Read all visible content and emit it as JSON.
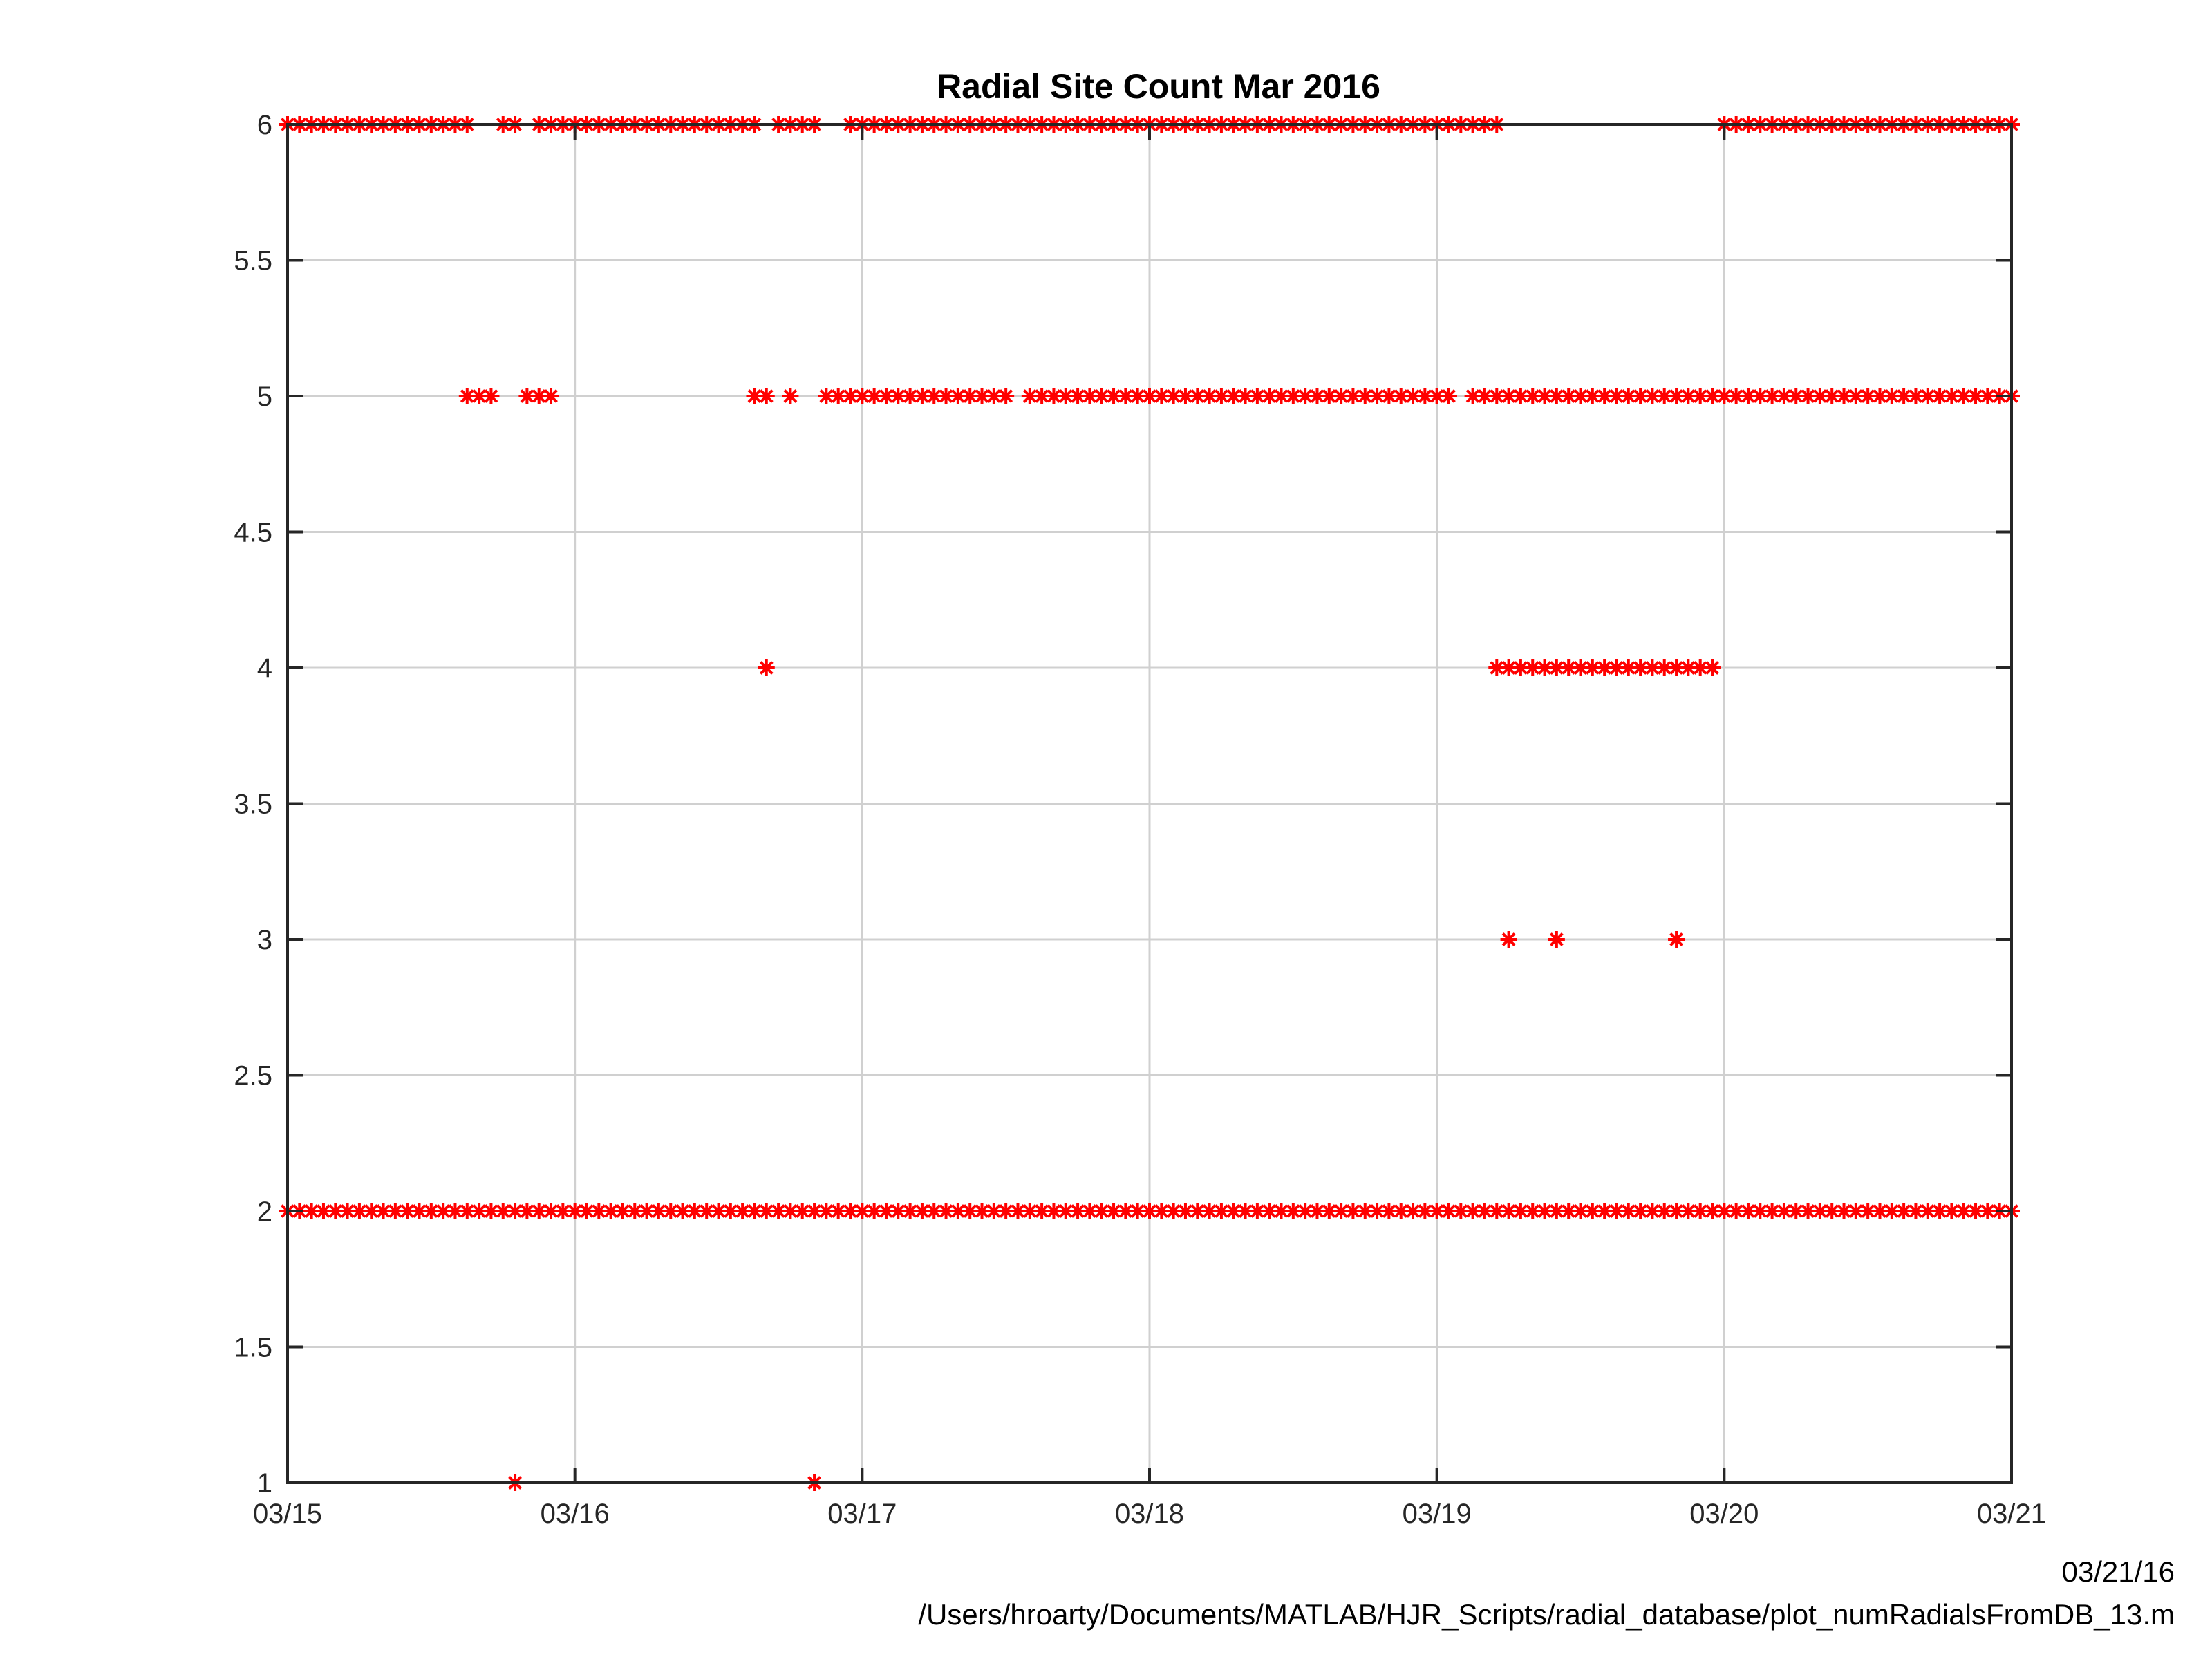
{
  "chart_data": {
    "type": "scatter",
    "title": "Radial Site Count Mar 2016",
    "xlabel": "",
    "ylabel": "",
    "xlim": [
      "03/15",
      "03/21"
    ],
    "ylim": [
      1,
      6
    ],
    "grid": true,
    "marker": "asterisk",
    "color": "#ff0000",
    "x_tick_labels": [
      "03/15",
      "03/16",
      "03/17",
      "03/18",
      "03/19",
      "03/20",
      "03/21"
    ],
    "y_tick_labels": [
      "1",
      "1.5",
      "2",
      "2.5",
      "3",
      "3.5",
      "4",
      "4.5",
      "5",
      "5.5",
      "6"
    ],
    "x_tick_days": [
      15,
      16,
      17,
      18,
      19,
      20,
      21
    ],
    "y_ticks": [
      1,
      1.5,
      2,
      2.5,
      3,
      3.5,
      4,
      4.5,
      5,
      5.5,
      6
    ],
    "sample_interval_hours": 1,
    "series": [
      {
        "values_description": "hourly site counts shown as runs of dates (day of March 2016, fractional) at each count level",
        "runs": [
          {
            "y": 6,
            "ranges": [
              [
                "2016-03-15 00:00",
                "2016-03-15 15:00"
              ],
              [
                "2016-03-15 18:00",
                "2016-03-15 19:00"
              ],
              [
                "2016-03-15 21:00",
                "2016-03-16 15:00"
              ],
              [
                "2016-03-16 17:00",
                "2016-03-16 20:00"
              ],
              [
                "2016-03-16 23:00",
                "2016-03-19 05:00"
              ],
              [
                "2016-03-20 00:00",
                "2016-03-21 00:00"
              ]
            ]
          },
          {
            "y": 5,
            "ranges": [
              [
                "2016-03-15 15:00",
                "2016-03-15 17:00"
              ],
              [
                "2016-03-15 20:00",
                "2016-03-15 22:00"
              ],
              [
                "2016-03-16 15:00",
                "2016-03-16 16:00"
              ],
              [
                "2016-03-16 18:00",
                "2016-03-16 18:00"
              ],
              [
                "2016-03-16 21:00",
                "2016-03-17 12:00"
              ],
              [
                "2016-03-17 14:00",
                "2016-03-19 01:00"
              ],
              [
                "2016-03-19 03:00",
                "2016-03-21 00:00"
              ]
            ]
          },
          {
            "y": 4,
            "ranges": [
              [
                "2016-03-16 16:00",
                "2016-03-16 16:00"
              ],
              [
                "2016-03-19 05:00",
                "2016-03-19 23:00"
              ]
            ]
          },
          {
            "y": 3,
            "ranges": [
              [
                "2016-03-19 06:00",
                "2016-03-19 06:00"
              ],
              [
                "2016-03-19 10:00",
                "2016-03-19 10:00"
              ],
              [
                "2016-03-19 20:00",
                "2016-03-19 20:00"
              ]
            ]
          },
          {
            "y": 2,
            "ranges": [
              [
                "2016-03-15 00:00",
                "2016-03-21 00:00"
              ]
            ]
          },
          {
            "y": 1,
            "ranges": [
              [
                "2016-03-15 19:00",
                "2016-03-15 19:00"
              ],
              [
                "2016-03-16 20:00",
                "2016-03-16 20:00"
              ]
            ]
          }
        ]
      }
    ]
  },
  "footer": {
    "date": "03/21/16",
    "path": "/Users/hroarty/Documents/MATLAB/HJR_Scripts/radial_database/plot_numRadialsFromDB_13.m"
  }
}
